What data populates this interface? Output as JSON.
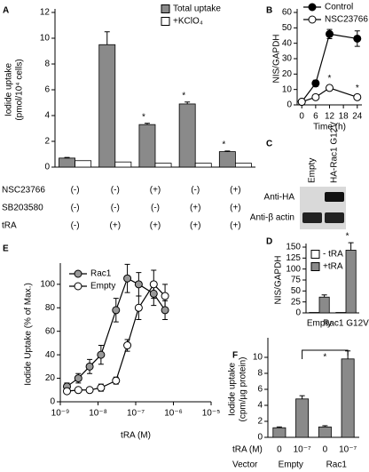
{
  "chart_data": [
    {
      "type": "bar",
      "label": "A",
      "ylabel": [
        "Iodide uptake",
        "(pmol/10⁴ cells)"
      ],
      "series": [
        {
          "name": "Total uptake",
          "color": "#8a8a8a",
          "values": [
            0.7,
            9.5,
            3.3,
            4.9,
            1.2
          ],
          "errors": [
            0.05,
            1.0,
            0.1,
            0.15,
            0.05
          ],
          "annotations": [
            null,
            null,
            "*",
            "*",
            "*"
          ]
        },
        {
          "name": "+KClO₄",
          "color": "#ffffff",
          "values": [
            0.5,
            0.4,
            0.3,
            0.3,
            0.3
          ]
        }
      ],
      "ylim": [
        0,
        12
      ],
      "yticks": [
        0,
        2,
        4,
        6,
        8,
        10,
        12
      ],
      "conditions": [
        {
          "name": "NSC23766",
          "values": [
            "(-)",
            "(-)",
            "(+)",
            "(-)",
            "(+)"
          ]
        },
        {
          "name": "SB203580",
          "values": [
            "(-)",
            "(-)",
            "(-)",
            "(+)",
            "(+)"
          ]
        },
        {
          "name": "tRA",
          "values": [
            "(-)",
            "(+)",
            "(+)",
            "(+)",
            "(+)"
          ]
        }
      ]
    },
    {
      "type": "line",
      "label": "B",
      "ylabel": [
        "NIS/GAPDH"
      ],
      "xlabel": "Time (h)",
      "x": [
        0,
        6,
        12,
        24
      ],
      "series": [
        {
          "name": "Control",
          "color": "#000000",
          "values": [
            2,
            14,
            46,
            43
          ],
          "errors": [
            0.5,
            2,
            3,
            5
          ]
        },
        {
          "name": "NSC23766",
          "color": "#ffffff",
          "values": [
            2,
            5,
            11,
            5
          ],
          "errors": [
            0.5,
            1,
            1.5,
            1
          ],
          "annotations": [
            null,
            "*",
            "*",
            "*"
          ]
        }
      ],
      "xlim": [
        -2,
        26
      ],
      "xticks": [
        0,
        6,
        12,
        18,
        24
      ],
      "ylim": [
        0,
        60
      ],
      "yticks": [
        0,
        10,
        20,
        30,
        40,
        50,
        60
      ]
    },
    {
      "type": "blot",
      "label": "C",
      "lanes": [
        "Empty",
        "HA-Rac1 G12V"
      ],
      "rows": [
        "Anti-HA",
        "Anti-β actin"
      ]
    },
    {
      "type": "bar",
      "label": "D",
      "ylabel": [
        "NIS/GAPDH"
      ],
      "categories": [
        "Empty",
        "Rac1 G12V"
      ],
      "series": [
        {
          "name": "- tRA",
          "color": "#ffffff",
          "values": [
            1,
            1
          ]
        },
        {
          "name": "+tRA",
          "color": "#8a8a8a",
          "values": [
            36,
            143
          ],
          "errors": [
            5,
            17
          ],
          "annotations": [
            null,
            "*"
          ]
        }
      ],
      "ylim": [
        0,
        150
      ],
      "yticks": [
        0,
        25,
        50,
        75,
        100,
        125,
        150
      ]
    },
    {
      "type": "line",
      "label": "E",
      "ylabel": [
        "Iodide Uptake (% of Max.)"
      ],
      "xlabel": "tRA (M)",
      "xlog": true,
      "x": [
        1.5e-09,
        3e-09,
        6e-09,
        1.2e-08,
        3e-08,
        6e-08,
        1.2e-07,
        3e-07,
        6e-07
      ],
      "series": [
        {
          "name": "Rac1",
          "color": "#999999",
          "values": [
            13,
            20,
            30,
            40,
            78,
            105,
            100,
            92,
            78
          ],
          "errors": [
            3,
            4,
            6,
            8,
            10,
            12,
            10,
            10,
            8
          ]
        },
        {
          "name": "Empty",
          "color": "#ffffff",
          "values": [
            9,
            10,
            10,
            12,
            18,
            48,
            80,
            100,
            90
          ],
          "errors": [
            2,
            2,
            2,
            3,
            3,
            5,
            10,
            12,
            10
          ]
        }
      ],
      "xlim": [
        1e-09,
        1e-05
      ],
      "xticks": [
        {
          "value": 1e-09,
          "label": "10⁻⁹"
        },
        {
          "value": 1e-08,
          "label": "10⁻⁸"
        },
        {
          "value": 1e-07,
          "label": "10⁻⁷"
        },
        {
          "value": 1e-06,
          "label": "10⁻⁶"
        },
        {
          "value": 1e-05,
          "label": "10⁻⁵"
        }
      ],
      "ylim": [
        0,
        115
      ],
      "yticks": [
        0,
        20,
        40,
        60,
        80,
        100
      ]
    },
    {
      "type": "bar",
      "label": "F",
      "ylabel": [
        "Iodide uptake",
        "(cpm/µg protein)"
      ],
      "series": [
        {
          "color": "#8a8a8a",
          "values": [
            1.2,
            4.8,
            1.3,
            9.8
          ],
          "errors": [
            0.1,
            0.4,
            0.15,
            1.0
          ]
        }
      ],
      "ylim": [
        0,
        12
      ],
      "yticks": [
        0,
        2,
        4,
        6,
        8,
        10
      ],
      "bracket": "*",
      "conditions": [
        {
          "name": "tRA (M)",
          "values": [
            "0",
            "10⁻⁷",
            "0",
            "10⁻⁷"
          ]
        },
        {
          "name": "Vector",
          "values": [
            "Empty",
            "Rac1"
          ]
        }
      ]
    }
  ]
}
